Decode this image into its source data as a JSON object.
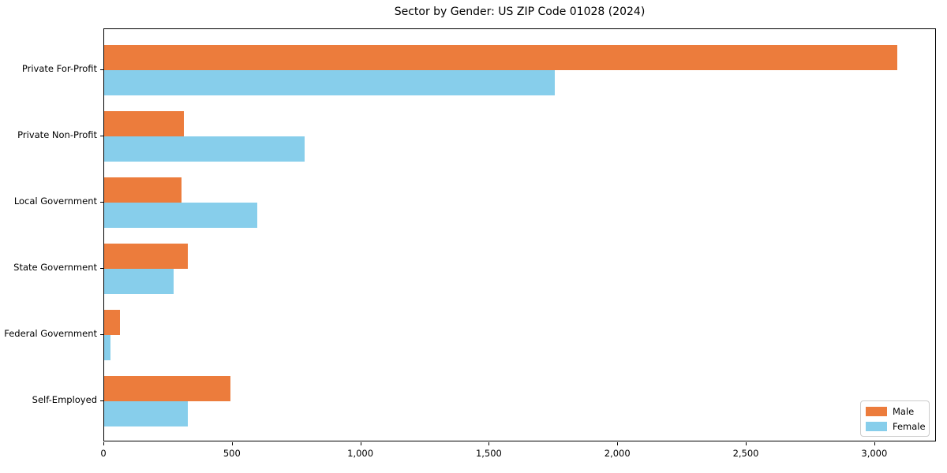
{
  "chart_data": {
    "type": "bar",
    "orientation": "horizontal",
    "title": "Sector by Gender: US ZIP Code 01028 (2024)",
    "categories": [
      "Private For-Profit",
      "Private Non-Profit",
      "Local Government",
      "State Government",
      "Federal Government",
      "Self-Employed"
    ],
    "series": [
      {
        "name": "Male",
        "color": "#ec7c3c",
        "values": [
          3085,
          310,
          300,
          325,
          60,
          490
        ]
      },
      {
        "name": "Female",
        "color": "#87ceeb",
        "values": [
          1755,
          780,
          595,
          270,
          25,
          325
        ]
      }
    ],
    "xlabel": "",
    "ylabel": "",
    "xlim": [
      0,
      3240
    ],
    "x_ticks": [
      0,
      500,
      1000,
      1500,
      2000,
      2500,
      3000
    ],
    "x_tick_labels": [
      "0",
      "500",
      "1,000",
      "1,500",
      "2,000",
      "2,500",
      "3,000"
    ],
    "grid": false,
    "legend": {
      "position": "lower right",
      "entries": [
        "Male",
        "Female"
      ]
    }
  },
  "colors": {
    "male": "#ec7c3c",
    "female": "#87ceeb",
    "axis": "#000000",
    "background": "#ffffff",
    "legend_border": "#cccccc"
  }
}
